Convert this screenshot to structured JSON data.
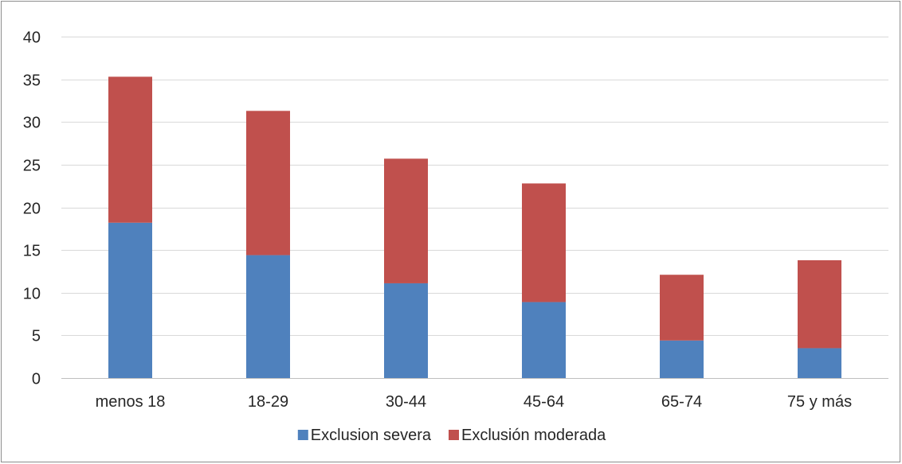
{
  "chart_data": {
    "type": "bar",
    "stacked": true,
    "categories": [
      "menos 18",
      "18-29",
      "30-44",
      "45-64",
      "65-74",
      "75 y más"
    ],
    "series": [
      {
        "name": "Exclusion severa",
        "color": "#4f81bd",
        "values": [
          18.2,
          14.4,
          11.1,
          8.9,
          4.4,
          3.5
        ]
      },
      {
        "name": "Exclusión moderada",
        "color": "#c0504d",
        "values": [
          17.1,
          16.9,
          14.6,
          13.9,
          7.7,
          10.3
        ]
      }
    ],
    "ylim": [
      0,
      40
    ],
    "yticks": [
      0,
      5,
      10,
      15,
      20,
      25,
      30,
      35,
      40
    ],
    "grid": true,
    "legend": "bottom-center"
  }
}
